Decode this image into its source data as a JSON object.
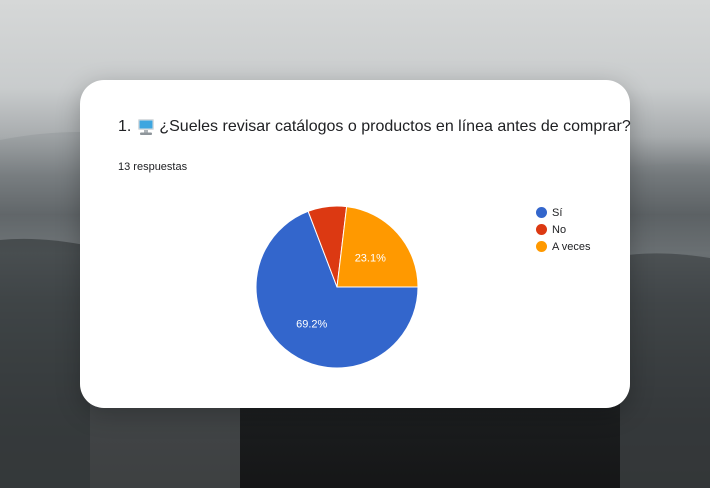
{
  "question": {
    "number": "1.",
    "icon": "computer-icon",
    "text": "¿Sueles revisar catálogos o productos en línea antes de comprar?"
  },
  "responses_label": "13 respuestas",
  "chart_data": {
    "type": "pie",
    "title": "",
    "legend_position": "right",
    "slices": [
      {
        "label": "Sí",
        "value": 69.2,
        "display": "69.2%",
        "color": "#3366cc"
      },
      {
        "label": "No",
        "value": 7.7,
        "display": "",
        "color": "#dc3912"
      },
      {
        "label": "A veces",
        "value": 23.1,
        "display": "23.1%",
        "color": "#ff9900"
      }
    ]
  }
}
